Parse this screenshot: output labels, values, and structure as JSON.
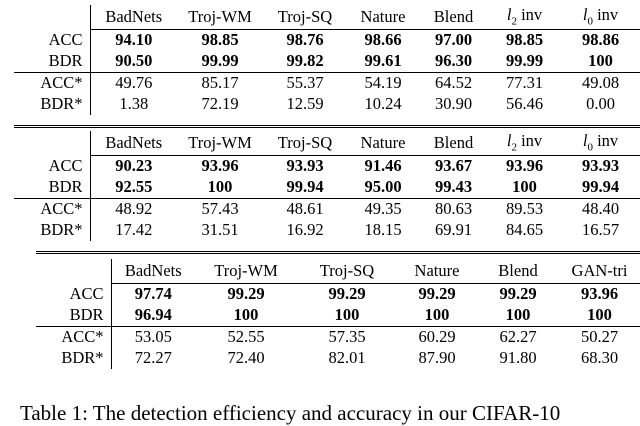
{
  "tables": [
    {
      "headers": [
        "BadNets",
        "Troj-WM",
        "Troj-SQ",
        "Nature",
        "Blend",
        "l2 inv",
        "l0 inv"
      ],
      "rows": [
        {
          "label": "ACC",
          "values": [
            "94.10",
            "98.85",
            "98.76",
            "98.66",
            "97.00",
            "98.85",
            "98.86"
          ],
          "bold": true
        },
        {
          "label": "BDR",
          "values": [
            "90.50",
            "99.99",
            "99.82",
            "99.61",
            "96.30",
            "99.99",
            "100"
          ],
          "bold": true
        },
        {
          "label": "ACC*",
          "values": [
            "49.76",
            "85.17",
            "55.37",
            "54.19",
            "64.52",
            "77.31",
            "49.08"
          ],
          "bold": false
        },
        {
          "label": "BDR*",
          "values": [
            "1.38",
            "72.19",
            "12.59",
            "10.24",
            "30.90",
            "56.46",
            "0.00"
          ],
          "bold": false
        }
      ]
    },
    {
      "headers": [
        "BadNets",
        "Troj-WM",
        "Troj-SQ",
        "Nature",
        "Blend",
        "l2 inv",
        "l0 inv"
      ],
      "rows": [
        {
          "label": "ACC",
          "values": [
            "90.23",
            "93.96",
            "93.93",
            "91.46",
            "93.67",
            "93.96",
            "93.93"
          ],
          "bold": true
        },
        {
          "label": "BDR",
          "values": [
            "92.55",
            "100",
            "99.94",
            "95.00",
            "99.43",
            "100",
            "99.94"
          ],
          "bold": true
        },
        {
          "label": "ACC*",
          "values": [
            "48.92",
            "57.43",
            "48.61",
            "49.35",
            "80.63",
            "89.53",
            "48.40"
          ],
          "bold": false
        },
        {
          "label": "BDR*",
          "values": [
            "17.42",
            "31.51",
            "16.92",
            "18.15",
            "69.91",
            "84.65",
            "16.57"
          ],
          "bold": false
        }
      ]
    },
    {
      "headers": [
        "BadNets",
        "Troj-WM",
        "Troj-SQ",
        "Nature",
        "Blend",
        "GAN-tri"
      ],
      "rows": [
        {
          "label": "ACC",
          "values": [
            "97.74",
            "99.29",
            "99.29",
            "99.29",
            "99.29",
            "93.96"
          ],
          "bold": true
        },
        {
          "label": "BDR",
          "values": [
            "96.94",
            "100",
            "100",
            "100",
            "100",
            "100"
          ],
          "bold": true
        },
        {
          "label": "ACC*",
          "values": [
            "53.05",
            "52.55",
            "57.35",
            "60.29",
            "62.27",
            "50.27"
          ],
          "bold": false
        },
        {
          "label": "BDR*",
          "values": [
            "72.27",
            "72.40",
            "82.01",
            "87.90",
            "91.80",
            "68.30"
          ],
          "bold": false
        }
      ]
    }
  ],
  "caption": "Table 1:  The detection efficiency and accuracy in our CIFAR-10"
}
